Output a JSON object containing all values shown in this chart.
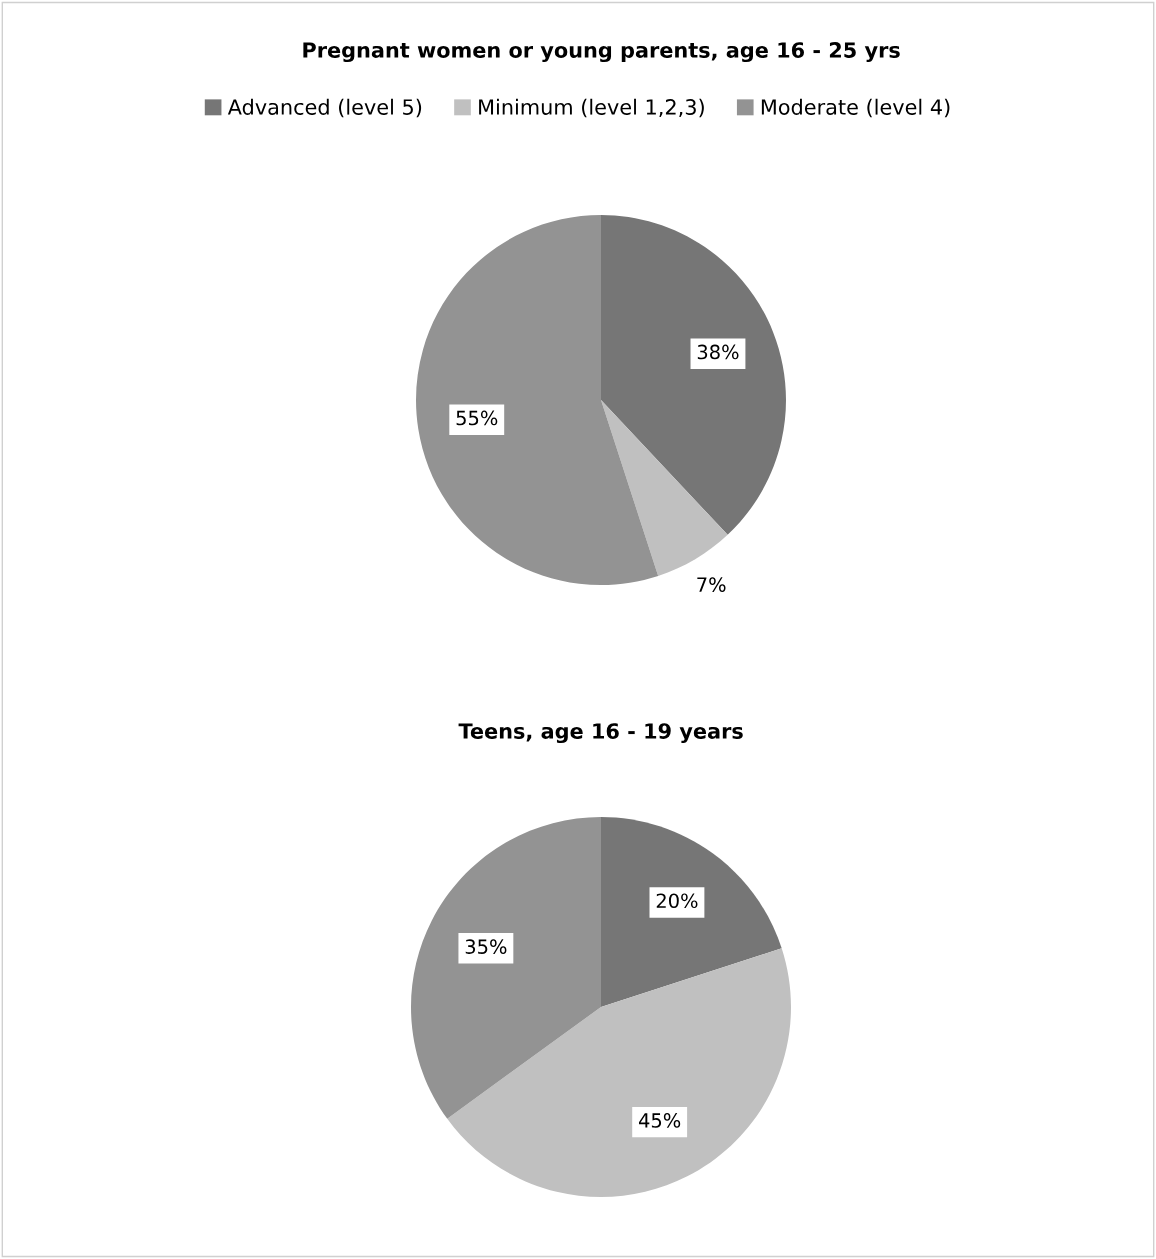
{
  "chart_data": [
    {
      "type": "pie",
      "title": "Pregnant women or young parents, age 16 - 25 yrs",
      "categories": [
        "Advanced (level 5)",
        "Minimum (level 1,2,3)",
        "Moderate (level 4)"
      ],
      "values": [
        38,
        7,
        55
      ],
      "colors": [
        "#767676",
        "#c0c0c0",
        "#939393"
      ],
      "value_labels": [
        "38%",
        "7%",
        "55%"
      ],
      "legend": "top"
    },
    {
      "type": "pie",
      "title": "Teens, age 16 - 19 years",
      "categories": [
        null,
        null,
        null
      ],
      "values": [
        20,
        45,
        35
      ],
      "colors": [
        "#767676",
        "#c0c0c0",
        "#939393"
      ],
      "value_labels": [
        "20%",
        "45%",
        "35%"
      ]
    }
  ]
}
